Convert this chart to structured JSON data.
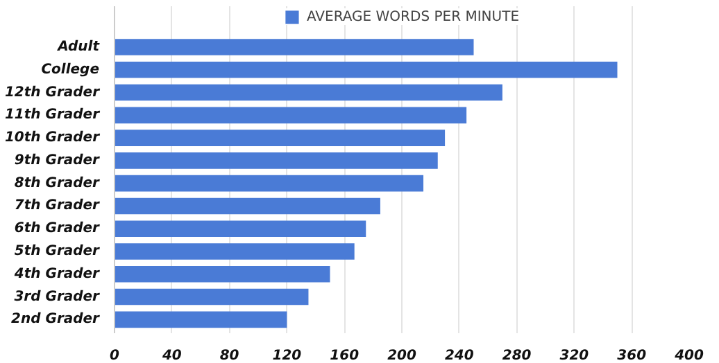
{
  "chart_data": {
    "type": "bar",
    "orientation": "horizontal",
    "categories": [
      "Adult",
      "College",
      "12th Grader",
      "11th Grader",
      "10th Grader",
      "9th Grader",
      "8th Grader",
      "7th Grader",
      "6th Grader",
      "5th Grader",
      "4th Grader",
      "3rd Grader",
      "2nd Grader"
    ],
    "series": [
      {
        "name": "AVERAGE WORDS PER MINUTE",
        "color": "#4a7bd6",
        "values": [
          250,
          350,
          270,
          245,
          230,
          225,
          215,
          185,
          175,
          167,
          150,
          135,
          120
        ]
      }
    ],
    "xlim": [
      0,
      400
    ],
    "xticks": [
      0,
      40,
      80,
      120,
      160,
      200,
      240,
      280,
      320,
      360,
      400
    ],
    "grid": "x",
    "legend": "top"
  }
}
